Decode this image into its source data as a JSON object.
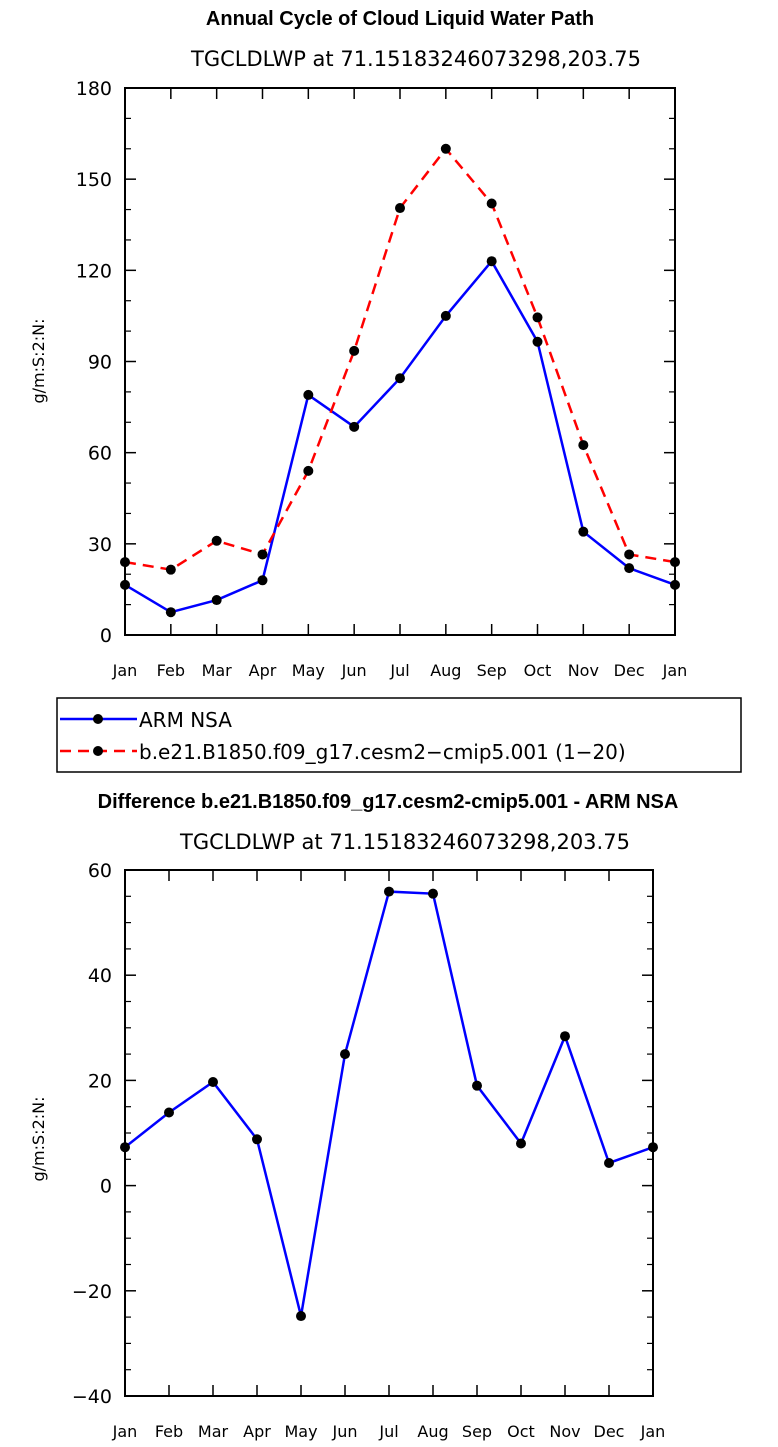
{
  "chart_data": [
    {
      "type": "line",
      "title": "Annual Cycle of Cloud Liquid Water Path",
      "subtitle": "TGCLDLWP  at 71.15183246073298,203.75",
      "ylabel": "g/m:S:2:N:",
      "categories": [
        "Jan",
        "Feb",
        "Mar",
        "Apr",
        "May",
        "Jun",
        "Jul",
        "Aug",
        "Sep",
        "Oct",
        "Nov",
        "Dec",
        "Jan"
      ],
      "ylim": [
        0,
        180
      ],
      "yticks": [
        0,
        30,
        60,
        90,
        120,
        150,
        180
      ],
      "series": [
        {
          "name": "ARM NSA",
          "color": "#0000ff",
          "dash": "solid",
          "values": [
            16.5,
            7.5,
            11.5,
            18,
            79,
            68.5,
            84.5,
            105,
            123,
            96.5,
            34,
            22,
            16.5
          ]
        },
        {
          "name": "b.e21.B1850.f09_g17.cesm2−cmip5.001 (1−20)",
          "color": "#ff0000",
          "dash": "dashed",
          "values": [
            24,
            21.5,
            31,
            26.5,
            54,
            93.5,
            140.5,
            160,
            142,
            104.5,
            62.5,
            26.5,
            24
          ]
        }
      ]
    },
    {
      "type": "line",
      "title": "Difference b.e21.B1850.f09_g17.cesm2-cmip5.001 - ARM NSA",
      "subtitle": "TGCLDLWP  at 71.15183246073298,203.75",
      "ylabel": "g/m:S:2:N:",
      "categories": [
        "Jan",
        "Feb",
        "Mar",
        "Apr",
        "May",
        "Jun",
        "Jul",
        "Aug",
        "Sep",
        "Oct",
        "Nov",
        "Dec",
        "Jan"
      ],
      "ylim": [
        -40,
        60
      ],
      "yticks": [
        -40,
        -20,
        0,
        20,
        40,
        60
      ],
      "series": [
        {
          "color": "#0000ff",
          "dash": "solid",
          "values": [
            7.3,
            13.9,
            19.7,
            8.8,
            -24.8,
            25,
            55.9,
            55.5,
            19,
            8,
            28.4,
            4.3,
            7.3
          ]
        }
      ]
    }
  ]
}
